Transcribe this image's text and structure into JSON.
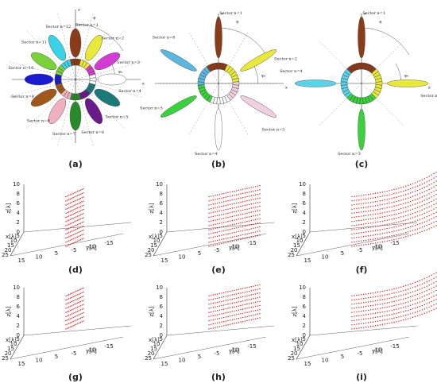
{
  "panels": [
    {
      "label": "(a)",
      "axis_z": "z",
      "axis_x": "x",
      "angle_theta": "ϑ",
      "angle_phi": "φₐ",
      "sectors": [
        "Sector n=1",
        "Sector n=2",
        "Sector n=3",
        "Sector n=4",
        "Sector n=5",
        "Sector n=6",
        "Sector n=7",
        "Sector n=8",
        "Sector n=9",
        "Sector n=10",
        "Sector n=11",
        "Sector n=12"
      ],
      "colors": [
        "#8b3a1a",
        "#e8e83a",
        "#d23cd2",
        "#ffffff",
        "#1a7a7a",
        "#6a1a8a",
        "#2a8a2a",
        "#f0b0c0",
        "#a0581a",
        "#1a1ad2",
        "#7ad23a",
        "#3ad2e8"
      ]
    },
    {
      "label": "(b)",
      "axis_z": "z",
      "axis_x": "x",
      "angle_theta": "ϑ",
      "angle_phi": "φₐ",
      "sectors": [
        "Sector n=1",
        "Sector n=2",
        "Sector n=3",
        "Sector n=4",
        "Sector n=5",
        "Sector n=6"
      ],
      "colors": [
        "#8b3a1a",
        "#e8e83a",
        "#f0d0e0",
        "#ffffff",
        "#3ad23a",
        "#5ab8e0"
      ]
    },
    {
      "label": "(c)",
      "axis_z": "z",
      "axis_x": "x",
      "angle_theta": "ϑ",
      "angle_phi": "φₐ",
      "sectors": [
        "Sector n=1",
        "Sector n=2",
        "Sector n=3",
        "Sector n=4"
      ],
      "colors": [
        "#8b3a1a",
        "#e8e83a",
        "#3ad23a",
        "#5ad2e8"
      ]
    }
  ],
  "plots": {
    "labels": [
      "(d)",
      "(e)",
      "(f)",
      "(g)",
      "(h)",
      "(i)"
    ],
    "z_label": "z[λ]",
    "x_label": "x[λ]",
    "y_label": "y[λ]",
    "z_ticks": [
      0,
      2,
      4,
      6,
      8,
      10
    ],
    "x_ticks": [
      5,
      10,
      15,
      20,
      25
    ],
    "y_ticks": [
      15,
      10,
      5,
      -5,
      -10,
      -15
    ]
  }
}
